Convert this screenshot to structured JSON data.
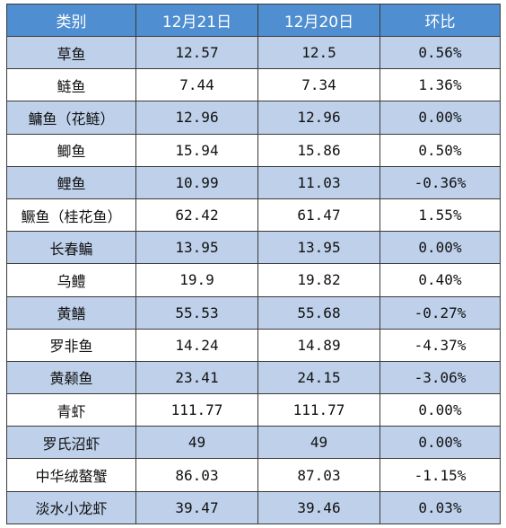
{
  "table": {
    "headers": [
      "类别",
      "12月21日",
      "12月20日",
      "环比"
    ],
    "rows": [
      [
        "草鱼",
        "12.57",
        "12.5",
        "0.56%"
      ],
      [
        "鲢鱼",
        "7.44",
        "7.34",
        "1.36%"
      ],
      [
        "鳙鱼（花鲢）",
        "12.96",
        "12.96",
        "0.00%"
      ],
      [
        "鲫鱼",
        "15.94",
        "15.86",
        "0.50%"
      ],
      [
        "鲤鱼",
        "10.99",
        "11.03",
        "-0.36%"
      ],
      [
        "鳜鱼（桂花鱼）",
        "62.42",
        "61.47",
        "1.55%"
      ],
      [
        "长春鳊",
        "13.95",
        "13.95",
        "0.00%"
      ],
      [
        "乌鳢",
        "19.9",
        "19.82",
        "0.40%"
      ],
      [
        "黄鳝",
        "55.53",
        "55.68",
        "-0.27%"
      ],
      [
        "罗非鱼",
        "14.24",
        "14.89",
        "-4.37%"
      ],
      [
        "黄颡鱼",
        "23.41",
        "24.15",
        "-3.06%"
      ],
      [
        "青虾",
        "111.77",
        "111.77",
        "0.00%"
      ],
      [
        "罗氏沼虾",
        "49",
        "49",
        "0.00%"
      ],
      [
        "中华绒螯蟹",
        "86.03",
        "87.03",
        "-1.15%"
      ],
      [
        "淡水小龙虾",
        "39.47",
        "39.46",
        "0.03%"
      ]
    ]
  },
  "colors": {
    "header_bg": "#4f8ed0",
    "header_text": "#ffffff",
    "stripe_bg": "#bed0ea",
    "row_bg": "#ffffff",
    "border": "#3a3a3a"
  }
}
